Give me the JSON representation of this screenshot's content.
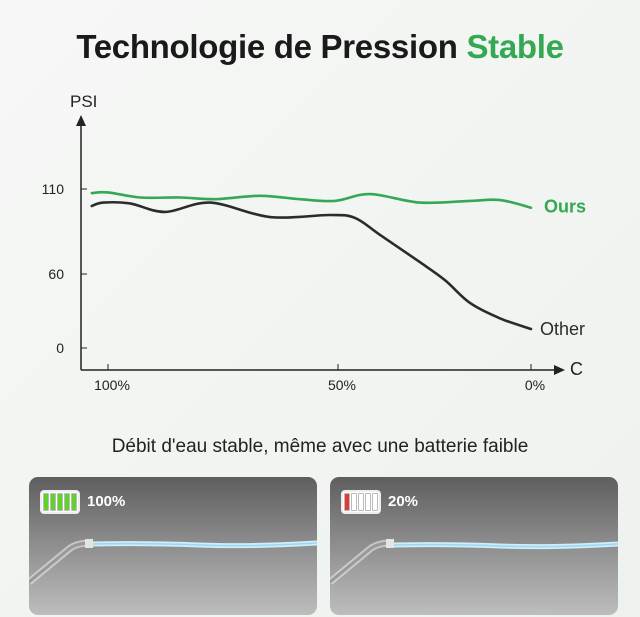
{
  "title": {
    "main": "Technologie de Pression",
    "accent": "Stable"
  },
  "subtitle": "Débit d'eau stable, même avec une batterie faible",
  "colors": {
    "ours": "#34a853",
    "other": "#2b2b2b",
    "accent": "#34a853"
  },
  "chart_data": {
    "type": "line",
    "title": "Technologie de Pression Stable",
    "xlabel": "C",
    "ylabel": "PSI",
    "x_ticks": [
      {
        "value": 100,
        "label": "100%"
      },
      {
        "value": 50,
        "label": "50%"
      },
      {
        "value": 0,
        "label": "0%"
      }
    ],
    "y_ticks": [
      {
        "value": 110,
        "label": "110"
      },
      {
        "value": 60,
        "label": "60"
      },
      {
        "value": 0,
        "label": "0"
      }
    ],
    "x_direction": "decreasing",
    "grid": false,
    "series": [
      {
        "name": "Ours",
        "label": "Ours",
        "color": "#34a853",
        "x": [
          106,
          100,
          93,
          84.3,
          76.7,
          67,
          58.3,
          50.7,
          41.7,
          28.8,
          15.8,
          8,
          0
        ],
        "y": [
          107.6,
          108,
          105,
          105,
          104,
          106,
          104,
          103,
          107,
          102,
          103,
          103.5,
          99
        ]
      },
      {
        "name": "Other",
        "label": "Other",
        "color": "#2b2b2b",
        "x": [
          106,
          101.7,
          95.2,
          87.6,
          77.8,
          64.8,
          51.7,
          45.6,
          39.1,
          28.8,
          22.3,
          15.8,
          8,
          0
        ],
        "y": [
          100,
          102,
          101.5,
          96.5,
          102,
          93.5,
          94.7,
          93,
          83,
          67,
          55,
          36.5,
          24,
          15.4
        ]
      }
    ]
  },
  "panels": [
    {
      "battery_label": "100%",
      "charge": 1.0,
      "cell_color": "#5fd32a"
    },
    {
      "battery_label": "20%",
      "charge": 0.2,
      "cell_color": "#e53935"
    }
  ]
}
